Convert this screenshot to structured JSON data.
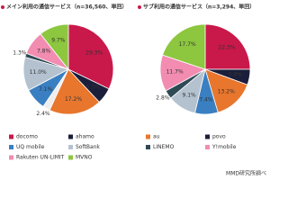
{
  "chart_data": [
    {
      "type": "pie",
      "title": "メイン利用の通信サービス（n=36,560、単回）",
      "values": [
        29.3,
        5.3,
        17.2,
        2.4,
        7.1,
        11.0,
        1.3,
        7.8,
        9.7
      ],
      "value_labels": [
        "29.3%",
        "5.3%",
        "17.2%",
        "2.4%",
        "7.1%",
        "11.0%",
        "1.3%",
        "7.8%",
        "9.7%"
      ],
      "colors": [
        "#c9184a",
        "#1b1f3b",
        "#e8762d",
        "#eeeeee",
        "#3a7fc1",
        "#b4c2d0",
        "#2e4a55",
        "#f28cb1",
        "#8dc63f"
      ],
      "legend": [
        {
          "name": "docomo",
          "color": "#c9184a"
        },
        {
          "name": "ahamo",
          "color": "#1b1f3b"
        },
        {
          "name": "UQ mobile",
          "color": "#3a7fc1"
        },
        {
          "name": "SoftBank",
          "color": "#b4c2d0"
        },
        {
          "name": "Rakuten UN-LIMIT",
          "color": "#f28cb1"
        },
        {
          "name": "MVNO",
          "color": "#8dc63f"
        }
      ]
    },
    {
      "type": "pie",
      "title": "サブ利用の通信サービス（n=3,294、単回）",
      "values": [
        22.3,
        5.0,
        13.2,
        7.4,
        9.1,
        2.8,
        11.7,
        17.7
      ],
      "value_labels": [
        "22.3%",
        "5.0%",
        "13.2%",
        "7.4%",
        "9.1%",
        "2.8%",
        "11.7%",
        "17.7%"
      ],
      "colors": [
        "#c9184a",
        "#1b1f3b",
        "#e8762d",
        "#3a7fc1",
        "#b4c2d0",
        "#2e4a55",
        "#f28cb1",
        "#8dc63f"
      ],
      "legend": [
        {
          "name": "au",
          "color": "#e8762d"
        },
        {
          "name": "povo",
          "color": "#1b1f3b"
        },
        {
          "name": "LINEMO",
          "color": "#2e4a55"
        },
        {
          "name": "Y!mobile",
          "color": "#f28cb1"
        }
      ]
    }
  ],
  "source": "MMD研究所調べ"
}
